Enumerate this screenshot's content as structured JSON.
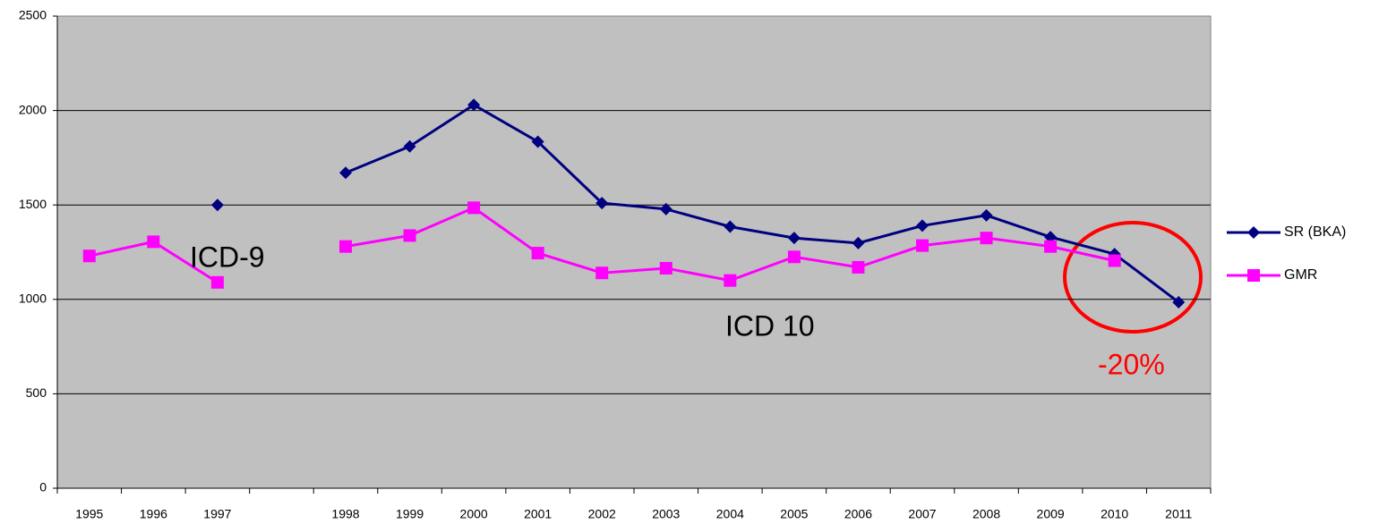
{
  "chart_data": {
    "type": "line",
    "categories": [
      "1995",
      "1996",
      "1997",
      null,
      "1998",
      "1999",
      "2000",
      "2001",
      "2002",
      "2003",
      "2004",
      "2005",
      "2006",
      "2007",
      "2008",
      "2009",
      "2010",
      "2011"
    ],
    "series": [
      {
        "name": "SR (BKA)",
        "color": "#000080",
        "marker": "diamond",
        "values": [
          null,
          null,
          1500,
          null,
          1670,
          1810,
          2030,
          1835,
          1510,
          1478,
          1385,
          1325,
          1298,
          1390,
          1445,
          1330,
          1240,
          985
        ]
      },
      {
        "name": "GMR",
        "color": "#ff00ff",
        "marker": "square",
        "values": [
          1230,
          1305,
          1090,
          null,
          1280,
          1338,
          1485,
          1245,
          1140,
          1165,
          1100,
          1225,
          1170,
          1285,
          1325,
          1280,
          1205,
          null
        ]
      }
    ],
    "ylim": [
      0,
      2500
    ],
    "yticks": [
      0,
      500,
      1000,
      1500,
      2000,
      2500
    ],
    "grid": true,
    "legend": "right",
    "annotations": [
      {
        "text": "ICD-9",
        "color": "#000000"
      },
      {
        "text": "ICD 10",
        "color": "#000000"
      },
      {
        "text": "-20%",
        "color": "#ff0000"
      }
    ]
  }
}
